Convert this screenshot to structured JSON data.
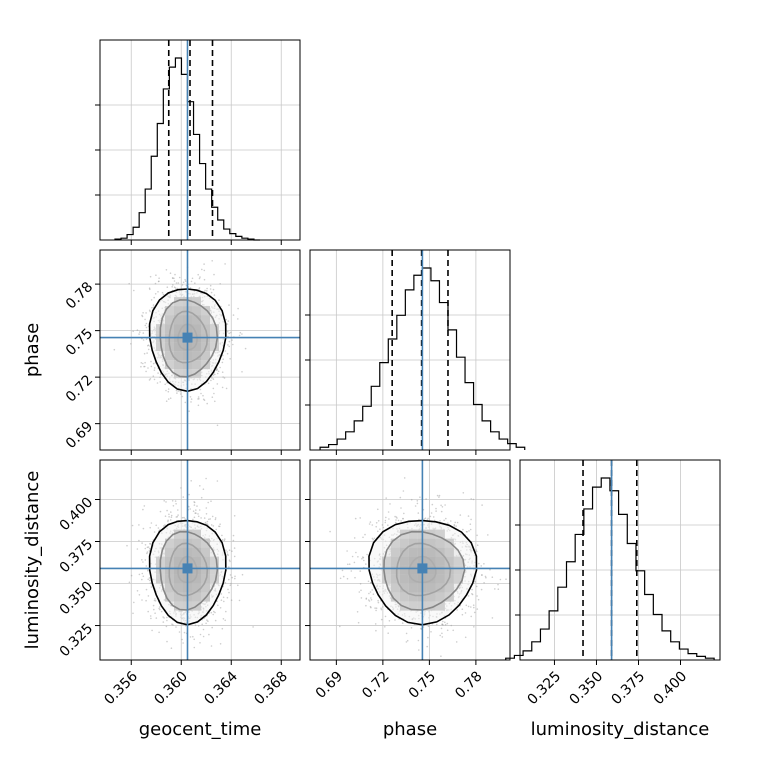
{
  "chart_data": {
    "type": "corner",
    "parameters": [
      "geocent_time",
      "phase",
      "luminosity_distance"
    ],
    "axis_labels": {
      "geocent_time": "geocent_time",
      "phase": "phase",
      "luminosity_distance": "luminosity_distance"
    },
    "ranges": {
      "geocent_time": [
        0.3535,
        0.3695
      ],
      "phase": [
        0.673,
        0.802
      ],
      "luminosity_distance": [
        0.3045,
        0.4235
      ]
    },
    "ticks": {
      "geocent_time": [
        0.356,
        0.36,
        0.364,
        0.368
      ],
      "phase": [
        0.69,
        0.72,
        0.75,
        0.78
      ],
      "luminosity_distance": [
        0.325,
        0.35,
        0.375,
        0.4
      ]
    },
    "tick_labels": {
      "geocent_time": [
        "0.356",
        "0.360",
        "0.364",
        "0.368"
      ],
      "phase": [
        "0.69",
        "0.72",
        "0.75",
        "0.78"
      ],
      "luminosity_distance": [
        "0.325",
        "0.350",
        "0.375",
        "0.400"
      ]
    },
    "truths": {
      "geocent_time": 0.3605,
      "phase": 0.7455,
      "luminosity_distance": 0.359
    },
    "quantiles": {
      "geocent_time": [
        0.359,
        0.3607,
        0.3625
      ],
      "phase": [
        0.726,
        0.745,
        0.762
      ],
      "luminosity_distance": [
        0.342,
        0.359,
        0.374
      ]
    },
    "histograms": {
      "geocent_time": [
        0.005,
        0.01,
        0.03,
        0.07,
        0.15,
        0.28,
        0.46,
        0.64,
        0.83,
        0.95,
        1.0,
        0.91,
        0.76,
        0.58,
        0.42,
        0.28,
        0.18,
        0.11,
        0.06,
        0.035,
        0.02,
        0.01,
        0.005,
        0.0
      ],
      "phase": [
        0.015,
        0.03,
        0.06,
        0.1,
        0.16,
        0.24,
        0.35,
        0.48,
        0.61,
        0.74,
        0.88,
        0.96,
        1.0,
        0.93,
        0.81,
        0.66,
        0.51,
        0.37,
        0.25,
        0.16,
        0.1,
        0.06,
        0.035,
        0.015
      ],
      "luminosity_distance": [
        0.01,
        0.025,
        0.05,
        0.1,
        0.17,
        0.27,
        0.4,
        0.54,
        0.69,
        0.83,
        0.95,
        1.0,
        0.93,
        0.8,
        0.64,
        0.49,
        0.36,
        0.25,
        0.16,
        0.1,
        0.06,
        0.035,
        0.02,
        0.01
      ]
    },
    "means": {
      "geocent_time": 0.3605,
      "phase": 0.7455,
      "luminosity_distance": 0.358
    },
    "stds": {
      "geocent_time": 0.00145,
      "phase": 0.0165,
      "luminosity_distance": 0.0155
    },
    "grid": true,
    "truth_color": "#4682b4",
    "contour_color": "#000000",
    "sample_color": "#9e9e9e"
  }
}
